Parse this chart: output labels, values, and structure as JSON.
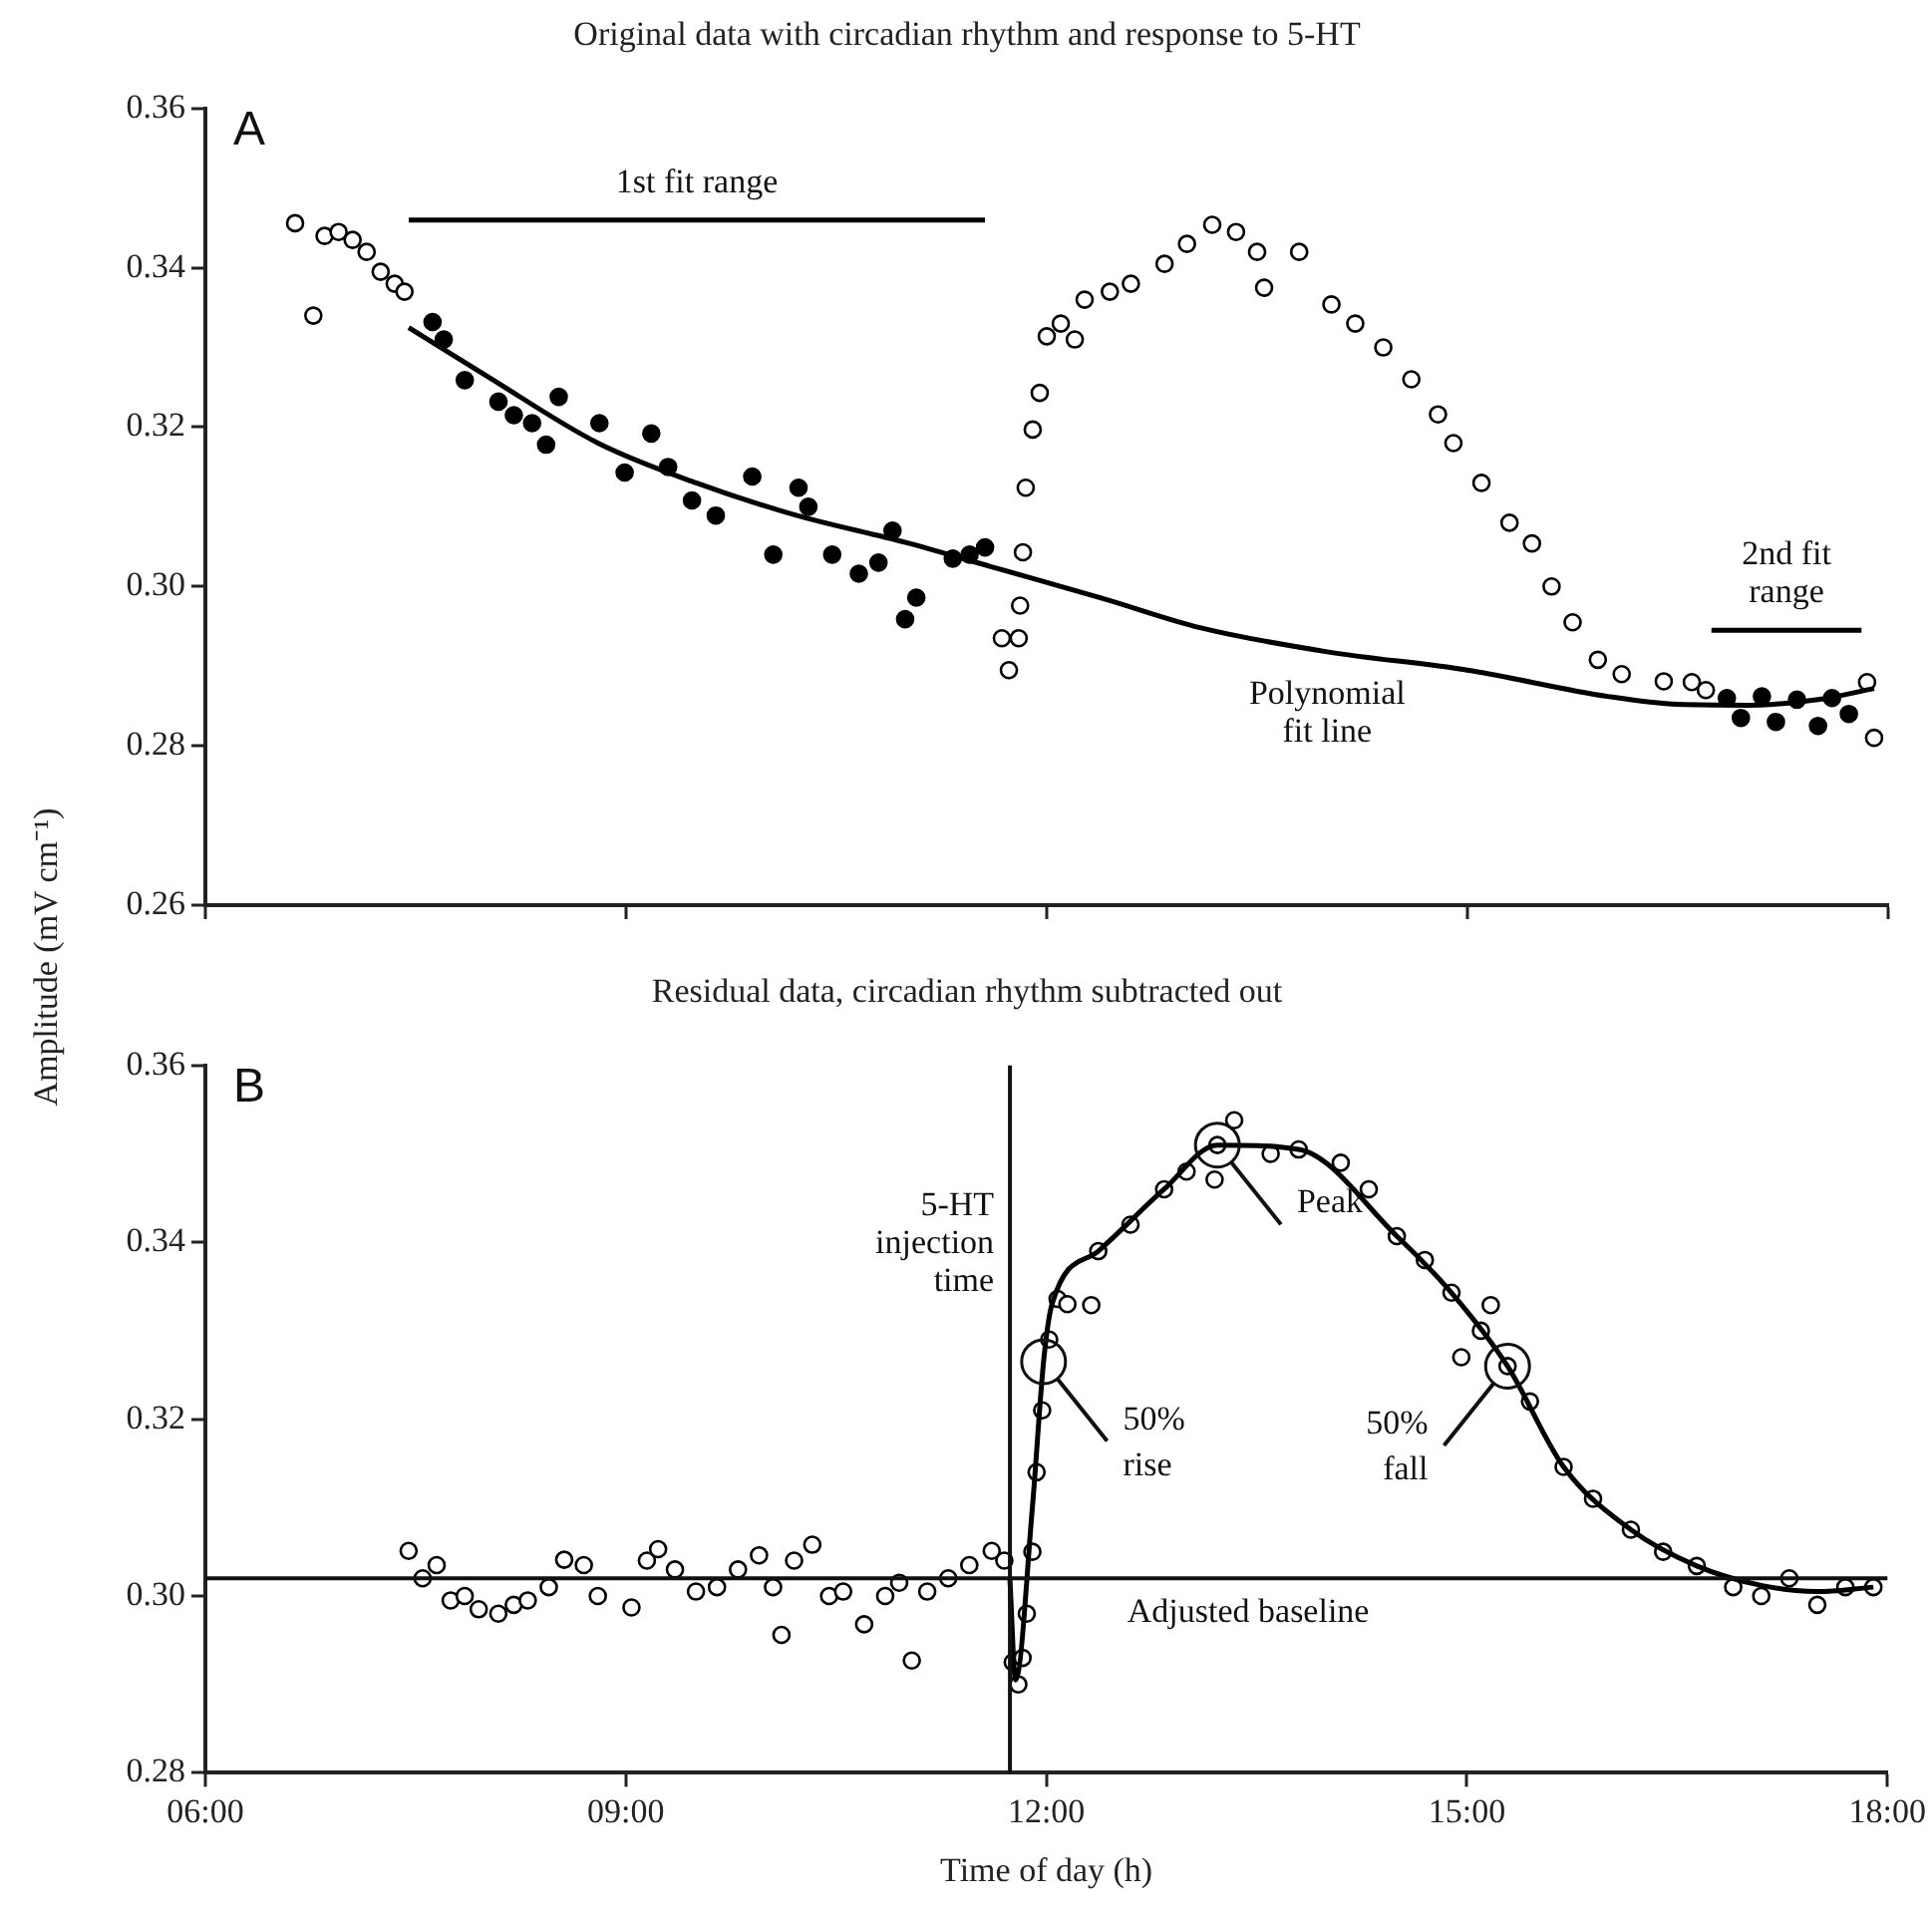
{
  "chart_data": [
    {
      "type": "scatter",
      "title": "Original data with circadian rhythm and response to 5-HT",
      "ylabel": "Amplitude (mV cm⁻¹)",
      "annotations": [
        "A"
      ],
      "xlim": [
        6,
        18
      ],
      "xticks": [
        {
          "value": 6,
          "label": null
        },
        {
          "value": 9,
          "label": null
        },
        {
          "value": 12,
          "label": null
        },
        {
          "value": 15,
          "label": null
        },
        {
          "value": 18,
          "label": null
        }
      ],
      "ylim": [
        0.26,
        0.36
      ],
      "yticks": [
        {
          "value": 0.26,
          "label": "0.26"
        },
        {
          "value": 0.28,
          "label": "0.28"
        },
        {
          "value": 0.3,
          "label": "0.30"
        },
        {
          "value": 0.32,
          "label": "0.32"
        },
        {
          "value": 0.34,
          "label": "0.34"
        },
        {
          "value": 0.36,
          "label": "0.36"
        }
      ],
      "tick_labels": "y",
      "grid": false,
      "legend": false,
      "marker": "circle",
      "series": [
        {
          "type": "line",
          "name": "1st fit range",
          "marker": "none",
          "color": "#000000",
          "x": [
            7.45,
            11.56
          ],
          "values": [
            0.346,
            0.346
          ]
        },
        {
          "type": "line",
          "name": "2nd fit range",
          "marker": "none",
          "color": "#000000",
          "x": [
            16.74,
            17.81
          ],
          "values": [
            0.2945,
            0.2945
          ]
        },
        {
          "color": "#000000",
          "x": [
            6.64,
            6.77,
            6.85,
            6.95,
            7.05,
            7.15,
            7.25,
            7.35,
            7.42,
            7.62,
            7.7,
            7.85,
            8.09,
            8.2,
            8.33,
            8.43,
            8.52,
            8.81,
            8.99,
            9.18,
            9.3,
            9.47,
            9.64,
            9.9,
            10.05,
            10.23,
            10.3,
            10.47,
            10.66,
            10.8,
            10.9,
            10.99,
            11.07,
            11.33,
            11.45,
            11.56,
            11.68,
            11.73,
            11.8,
            11.81,
            11.83,
            11.85,
            11.9,
            11.95,
            12.0,
            12.1,
            12.2,
            12.27,
            12.45,
            12.6,
            12.84,
            13.0,
            13.18,
            13.35,
            13.5,
            13.55,
            13.8,
            14.03,
            14.2,
            14.4,
            14.6,
            14.79,
            14.9,
            15.1,
            15.3,
            15.46,
            15.6,
            15.75,
            15.93,
            16.1,
            16.4,
            16.6,
            16.7,
            16.85,
            16.95,
            17.1,
            17.2,
            17.35,
            17.5,
            17.6,
            17.72,
            17.85,
            17.9
          ],
          "values": [
            0.3456,
            0.334,
            0.344,
            0.3445,
            0.3435,
            0.342,
            0.3395,
            0.338,
            0.337,
            0.3332,
            0.331,
            0.3259,
            0.3232,
            0.3215,
            0.3205,
            0.3178,
            0.3238,
            0.3205,
            0.3143,
            0.3192,
            0.315,
            0.3108,
            0.3089,
            0.3138,
            0.304,
            0.3124,
            0.31,
            0.304,
            0.3016,
            0.303,
            0.307,
            0.2959,
            0.2986,
            0.3035,
            0.304,
            0.3049,
            0.2935,
            0.2895,
            0.2935,
            0.2976,
            0.3043,
            0.3124,
            0.3197,
            0.3243,
            0.3314,
            0.333,
            0.331,
            0.336,
            0.337,
            0.338,
            0.3405,
            0.343,
            0.3454,
            0.3445,
            0.342,
            0.3375,
            0.342,
            0.3354,
            0.333,
            0.33,
            0.326,
            0.3216,
            0.318,
            0.313,
            0.308,
            0.3054,
            0.3,
            0.2955,
            0.2908,
            0.289,
            0.2881,
            0.288,
            0.287,
            0.286,
            0.2835,
            0.2862,
            0.283,
            0.2858,
            0.2825,
            0.286,
            0.284,
            0.288,
            0.281
          ]
        },
        {
          "type": "line",
          "name": "Polynomial fit line",
          "marker": "none",
          "color": "#000000",
          "x": [
            7.45,
            8,
            8.8,
            9.5,
            10.2,
            11,
            11.6,
            12.4,
            13.1,
            14,
            15,
            16,
            16.5,
            17,
            17.5,
            17.9
          ],
          "values": [
            0.3325,
            0.3265,
            0.318,
            0.313,
            0.309,
            0.3055,
            0.3025,
            0.2985,
            0.2948,
            0.2918,
            0.2895,
            0.2862,
            0.2852,
            0.2851,
            0.2858,
            0.2872
          ]
        }
      ]
    },
    {
      "type": "scatter",
      "title": "Residual data, circadian rhythm subtracted out",
      "xlabel": "Time of day (h)",
      "annotations": [
        "B",
        {
          "text": "Peak",
          "x": 13.22,
          "y": 0.351
        },
        {
          "text": "50% rise",
          "x": 11.98,
          "y": 0.3265
        },
        {
          "text": "50% fall",
          "x": 15.29,
          "y": 0.326
        }
      ],
      "xlim": [
        6,
        18
      ],
      "xticks": [
        {
          "value": 6,
          "label": "06:00"
        },
        {
          "value": 9,
          "label": "09:00"
        },
        {
          "value": 12,
          "label": "12:00"
        },
        {
          "value": 15,
          "label": "15:00"
        },
        {
          "value": 18,
          "label": "18:00"
        }
      ],
      "ylim": [
        0.28,
        0.36
      ],
      "yticks": [
        {
          "value": 0.28,
          "label": "0.28"
        },
        {
          "value": 0.3,
          "label": "0.30"
        },
        {
          "value": 0.32,
          "label": "0.32"
        },
        {
          "value": 0.34,
          "label": "0.34"
        },
        {
          "value": 0.36,
          "label": "0.36"
        }
      ],
      "grid": false,
      "legend": false,
      "marker": "circle",
      "ref_lines": [
        {
          "axis": "x",
          "value": 11.74,
          "label": "5-HT injection time"
        },
        {
          "axis": "y",
          "value": 0.302,
          "label": "Adjusted baseline"
        }
      ],
      "series": [
        {
          "color": "#000000",
          "x": [
            7.45,
            7.55,
            7.65,
            7.75,
            7.85,
            7.95,
            8.09,
            8.2,
            8.3,
            8.45,
            8.56,
            8.7,
            8.8,
            9.04,
            9.15,
            9.23,
            9.35,
            9.5,
            9.65,
            9.8,
            9.95,
            10.05,
            10.11,
            10.2,
            10.33,
            10.45,
            10.55,
            10.7,
            10.85,
            10.95,
            11.04,
            11.15,
            11.3,
            11.45,
            11.61,
            11.7,
            11.76,
            11.8,
            11.83,
            11.86,
            11.9,
            11.93,
            11.97,
            12.02,
            12.08,
            12.15,
            12.32,
            12.37,
            12.6,
            12.84,
            13.0,
            13.2,
            13.22,
            13.34,
            13.6,
            13.8,
            14.1,
            14.3,
            14.5,
            14.7,
            14.89,
            14.96,
            15.1,
            15.17,
            15.29,
            15.45,
            15.69,
            15.9,
            16.17,
            16.4,
            16.64,
            16.9,
            17.1,
            17.3,
            17.5,
            17.7,
            17.9
          ],
          "values": [
            0.3051,
            0.302,
            0.3035,
            0.2995,
            0.3,
            0.2985,
            0.298,
            0.299,
            0.2995,
            0.301,
            0.3041,
            0.3035,
            0.3,
            0.2987,
            0.304,
            0.3053,
            0.303,
            0.3005,
            0.301,
            0.303,
            0.3046,
            0.301,
            0.2956,
            0.304,
            0.3058,
            0.3,
            0.3005,
            0.2968,
            0.3,
            0.3015,
            0.2927,
            0.3005,
            0.302,
            0.3035,
            0.3051,
            0.304,
            0.2925,
            0.29,
            0.293,
            0.298,
            0.305,
            0.314,
            0.321,
            0.329,
            0.3336,
            0.333,
            0.3329,
            0.339,
            0.342,
            0.346,
            0.348,
            0.3471,
            0.351,
            0.3538,
            0.35,
            0.3505,
            0.349,
            0.346,
            0.3407,
            0.338,
            0.3343,
            0.327,
            0.33,
            0.3329,
            0.326,
            0.322,
            0.3146,
            0.311,
            0.3075,
            0.305,
            0.3034,
            0.301,
            0.3,
            0.302,
            0.299,
            0.301,
            0.301
          ]
        },
        {
          "type": "line",
          "marker": "none",
          "color": "#000000",
          "x": [
            11.74,
            11.78,
            11.9,
            11.98,
            12.04,
            12.37,
            12.84,
            13.22,
            13.8,
            14.5,
            14.89,
            15.29,
            15.69,
            16.17,
            16.64,
            17.1,
            17.5,
            17.9
          ],
          "values": [
            0.3018,
            0.2905,
            0.31,
            0.3265,
            0.333,
            0.339,
            0.346,
            0.351,
            0.3505,
            0.3407,
            0.3343,
            0.326,
            0.3146,
            0.3075,
            0.3034,
            0.3012,
            0.3005,
            0.301
          ]
        }
      ]
    }
  ]
}
